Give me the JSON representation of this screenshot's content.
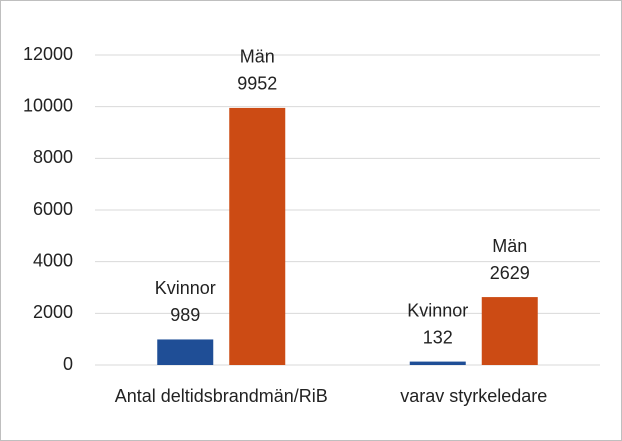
{
  "chart_data": {
    "type": "bar",
    "categories": [
      "Antal deltidsbrandmän/RiB",
      "varav styrkeledare"
    ],
    "series": [
      {
        "name": "Kvinnor",
        "color": "#1f4e96",
        "values": [
          989,
          132
        ]
      },
      {
        "name": "Män",
        "color": "#cc4b14",
        "values": [
          9952,
          2629
        ]
      }
    ],
    "ylim": [
      0,
      12000
    ],
    "yticks": [
      0,
      2000,
      4000,
      6000,
      8000,
      10000,
      12000
    ],
    "grid": true
  }
}
